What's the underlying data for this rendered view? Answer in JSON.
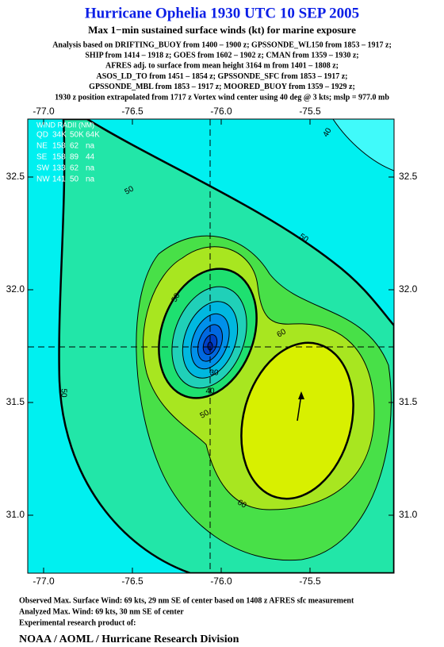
{
  "header": {
    "title": "Hurricane Ophelia 1930 UTC 10 SEP 2005",
    "subtitle": "Max 1−min sustained surface winds (kt) for marine exposure",
    "analysis_lines": [
      "Analysis based on  DRIFTING_BUOY from 1400 – 1900 z;  GPSSONDE_WL150 from 1853 – 1917 z;",
      "SHIP from 1414 – 1918 z;  GOES from 1602 – 1902 z;  CMAN from 1359 – 1930 z;",
      "AFRES adj. to surface from mean height 3164 m from 1401 – 1808 z;",
      "ASOS_LD_TO from 1451 – 1854 z;  GPSSONDE_SFC from 1853 – 1917 z;",
      "GPSSONDE_MBL from 1853 – 1917 z;  MOORED_BUOY from 1359 – 1929 z;",
      "1930 z position extrapolated from 1717 z Vortex wind center using 40 deg @ 3 kts; mslp = 977.0 mb"
    ]
  },
  "map": {
    "xticks": [
      {
        "value": -77.0,
        "label": "-77.0"
      },
      {
        "value": -76.5,
        "label": "-76.5"
      },
      {
        "value": -76.0,
        "label": "-76.0"
      },
      {
        "value": -75.5,
        "label": "-75.5"
      }
    ],
    "yticks": [
      32.5,
      {
        "value": 32.0,
        "label": "32.0"
      },
      31.5,
      {
        "value": 31.0,
        "label": "31.0"
      }
    ],
    "wind_radii": {
      "title": "WIND RADII (NM)",
      "header": [
        "QD",
        "34K",
        "50K",
        "64K"
      ],
      "rows": [
        [
          "NE",
          158,
          62,
          "na"
        ],
        [
          "SE",
          158,
          89,
          44
        ],
        [
          "SW",
          133,
          62,
          "na"
        ],
        [
          "NW",
          141,
          50,
          "na"
        ]
      ]
    },
    "contour_labels": [
      40,
      50,
      50,
      50,
      60,
      60,
      50,
      50,
      30,
      40
    ]
  },
  "footer": {
    "lines": [
      "Observed Max. Surface Wind: 69 kts, 29 nm SE of center based on 1408 z AFRES sfc measurement",
      "Analyzed Max. Wind: 69 kts, 30 nm SE of center",
      "Experimental research product of:"
    ],
    "credit": "NOAA / AOML / Hurricane Research Division"
  }
}
